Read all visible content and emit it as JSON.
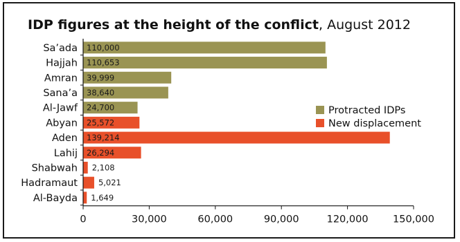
{
  "chart_data": {
    "type": "bar",
    "orientation": "horizontal",
    "title": "IDP figures at the height of the conflict",
    "subtitle": "August 2012",
    "categories": [
      "Sa’ada",
      "Hajjah",
      "Amran",
      "Sana’a",
      "Al-Jawf",
      "Abyan",
      "Aden",
      "Lahij",
      "Shabwah",
      "Hadramaut",
      "Al-Bayda"
    ],
    "values": [
      110000,
      110653,
      39999,
      38640,
      24700,
      25572,
      139214,
      26294,
      2108,
      5021,
      1649
    ],
    "value_labels": [
      "110,000",
      "110,653",
      "39,999",
      "38,640",
      "24,700",
      "25,572",
      "139,214",
      "26,294",
      "2,108",
      "5,021",
      "1,649"
    ],
    "groups": [
      "Protracted IDPs",
      "Protracted IDPs",
      "Protracted IDPs",
      "Protracted IDPs",
      "Protracted IDPs",
      "New displacement",
      "New displacement",
      "New displacement",
      "New displacement",
      "New displacement",
      "New displacement"
    ],
    "series": [
      {
        "name": "Protracted IDPs",
        "color": "#9a9453"
      },
      {
        "name": "New displacement",
        "color": "#e8502a"
      }
    ],
    "xlim": [
      0,
      150000
    ],
    "xticks": [
      0,
      30000,
      60000,
      90000,
      120000,
      150000
    ],
    "xtick_labels": [
      "0",
      "30,000",
      "60,000",
      "90,000",
      "120,000",
      "150,000"
    ],
    "xlabel": "",
    "ylabel": "",
    "grid": false,
    "legend_position": "right"
  }
}
